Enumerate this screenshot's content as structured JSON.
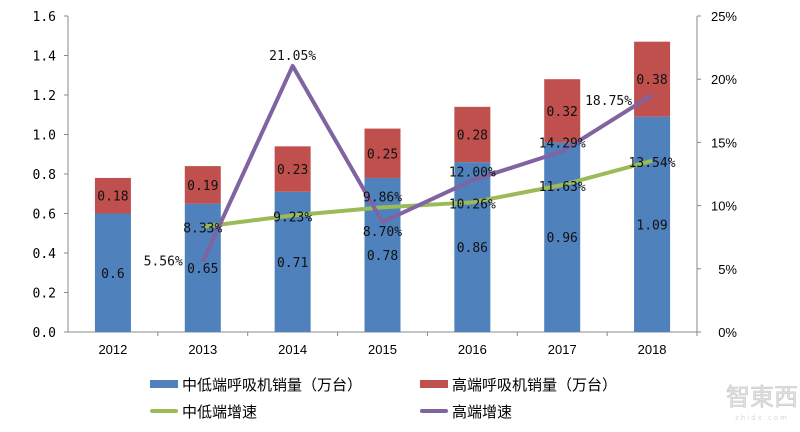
{
  "chart_data": {
    "type": "bar",
    "categories": [
      "2012",
      "2013",
      "2014",
      "2015",
      "2016",
      "2017",
      "2018"
    ],
    "stacked": true,
    "series": [
      {
        "name": "中低端呼吸机销量（万台）",
        "kind": "bar",
        "axis": "left",
        "color": "#4f81bd",
        "values": [
          0.6,
          0.65,
          0.71,
          0.78,
          0.86,
          0.96,
          1.09
        ],
        "labels": [
          "0.6",
          "0.65",
          "0.71",
          "0.78",
          "0.86",
          "0.96",
          "1.09"
        ]
      },
      {
        "name": "高端呼吸机销量（万台）",
        "kind": "bar",
        "axis": "left",
        "color": "#c0504d",
        "values": [
          0.18,
          0.19,
          0.23,
          0.25,
          0.28,
          0.32,
          0.38
        ],
        "labels": [
          "0.18",
          "0.19",
          "0.23",
          "0.25",
          "0.28",
          "0.32",
          "0.38"
        ]
      },
      {
        "name": "中低端增速",
        "kind": "line",
        "axis": "right",
        "color": "#9bbb59",
        "values": [
          null,
          8.33,
          9.23,
          9.86,
          10.26,
          11.63,
          13.54
        ],
        "labels": [
          "",
          "8.33%",
          "9.23%",
          "9.86%",
          "10.26%",
          "11.63%",
          "13.54%"
        ]
      },
      {
        "name": "高端增速",
        "kind": "line",
        "axis": "right",
        "color": "#8064a2",
        "values": [
          null,
          5.56,
          21.05,
          8.7,
          12.0,
          14.29,
          18.75
        ],
        "labels": [
          "",
          "5.56%",
          "21.05%",
          "8.70%",
          "12.00%",
          "14.29%",
          "18.75%"
        ]
      }
    ],
    "ylim": [
      0,
      1.6
    ],
    "yticks": [
      "0.0",
      "0.2",
      "0.4",
      "0.6",
      "0.8",
      "1.0",
      "1.2",
      "1.4",
      "1.6"
    ],
    "y2lim": [
      0,
      25
    ],
    "y2ticks": [
      "0%",
      "5%",
      "10%",
      "15%",
      "20%",
      "25%"
    ],
    "grid": false,
    "legend": "bottom"
  },
  "watermark": {
    "logo_text": "智東西",
    "sub": "zhidx.com"
  }
}
